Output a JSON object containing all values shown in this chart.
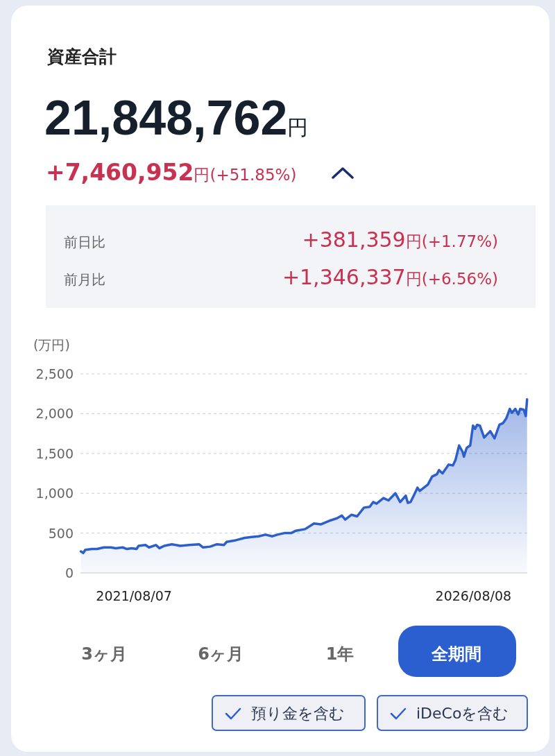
{
  "chart_data": {
    "type": "area",
    "title": "資産合計",
    "subtitle": "21,848,762円",
    "ylabel": "(万円)",
    "annotations": [
      "+7,460,952円(+51.85%)",
      "前日比",
      "+381,359円(+1.77%)",
      "前月比",
      "+1,346,337円(+6.56%)",
      "3ヶ月",
      "6ヶ月",
      "1年",
      "全期間",
      "預り金を含む",
      "iDeCoを含む"
    ],
    "xlim": [
      "2020-10-23",
      "2027-05-25"
    ],
    "xticks": [
      {
        "value": "2021-08-07",
        "label": "2021/08/07"
      },
      {
        "value": "2026-08-08",
        "label": "2026/08/08"
      }
    ],
    "ylim": [
      0,
      2500
    ],
    "yticks": [
      {
        "value": 0,
        "label": "0"
      },
      {
        "value": 500,
        "label": "500"
      },
      {
        "value": 1000,
        "label": "1,000"
      },
      {
        "value": 1500,
        "label": "1,500"
      },
      {
        "value": 2000,
        "label": "2,000"
      },
      {
        "value": 2500,
        "label": "2,500"
      }
    ],
    "grid": "y",
    "marker": "none",
    "line_style": "solid",
    "series": [
      {
        "color": "#2c5fcb",
        "x": [
          "2020-10-25",
          "2020-11-07",
          "2020-11-18",
          "2020-12-25",
          "2021-01-20",
          "2021-02-26",
          "2021-04-05",
          "2021-05-01",
          "2021-06-07",
          "2021-06-30",
          "2021-07-26",
          "2021-08-21",
          "2021-09-01",
          "2021-10-08",
          "2021-10-27",
          "2021-12-03",
          "2021-12-22",
          "2022-01-17",
          "2022-02-27",
          "2022-04-13",
          "2022-05-31",
          "2022-07-23",
          "2022-08-14",
          "2022-09-21",
          "2022-10-28",
          "2022-12-04",
          "2022-12-19",
          "2023-02-06",
          "2023-03-26",
          "2023-05-02",
          "2023-06-09",
          "2023-07-16",
          "2023-08-22",
          "2023-09-18",
          "2023-10-25",
          "2023-12-01",
          "2023-12-27",
          "2024-02-14",
          "2024-04-02",
          "2024-05-10",
          "2024-07-01",
          "2024-08-07",
          "2024-08-30",
          "2024-09-17",
          "2024-10-21",
          "2024-11-20",
          "2024-12-27",
          "2025-01-27",
          "2025-02-15",
          "2025-03-05",
          "2025-04-11",
          "2025-05-08",
          "2025-06-14",
          "2025-07-10",
          "2025-08-09",
          "2025-08-20",
          "2025-09-04",
          "2025-09-23",
          "2025-10-11",
          "2025-10-23",
          "2025-12-06",
          "2025-12-29",
          "2026-01-24",
          "2026-02-04",
          "2026-02-23",
          "2026-03-28",
          "2026-04-20",
          "2026-05-04",
          "2026-05-23",
          "2026-06-11",
          "2026-06-18",
          "2026-07-03",
          "2026-07-22",
          "2026-08-06",
          "2026-08-17",
          "2026-08-28",
          "2026-09-12",
          "2026-10-05",
          "2026-11-07",
          "2026-11-30",
          "2026-12-26",
          "2027-01-14",
          "2027-02-01",
          "2027-02-20",
          "2027-03-03",
          "2027-03-22",
          "2027-04-06",
          "2027-04-17",
          "2027-05-06",
          "2027-05-17",
          "2027-05-24"
        ],
        "values": [
          270,
          250,
          290,
          300,
          300,
          320,
          320,
          310,
          320,
          300,
          310,
          300,
          340,
          350,
          320,
          350,
          310,
          340,
          360,
          340,
          350,
          360,
          320,
          330,
          360,
          350,
          390,
          410,
          440,
          450,
          460,
          480,
          460,
          480,
          500,
          500,
          530,
          550,
          620,
          610,
          660,
          690,
          720,
          670,
          730,
          710,
          820,
          830,
          890,
          870,
          940,
          910,
          1000,
          890,
          970,
          880,
          890,
          980,
          1070,
          1030,
          1110,
          1210,
          1240,
          1290,
          1250,
          1360,
          1350,
          1420,
          1600,
          1520,
          1460,
          1570,
          1600,
          1850,
          1810,
          1860,
          1850,
          1700,
          1780,
          1690,
          1860,
          1880,
          1940,
          2060,
          2010,
          2060,
          1990,
          2060,
          2050,
          1970,
          2180
        ]
      }
    ]
  }
}
